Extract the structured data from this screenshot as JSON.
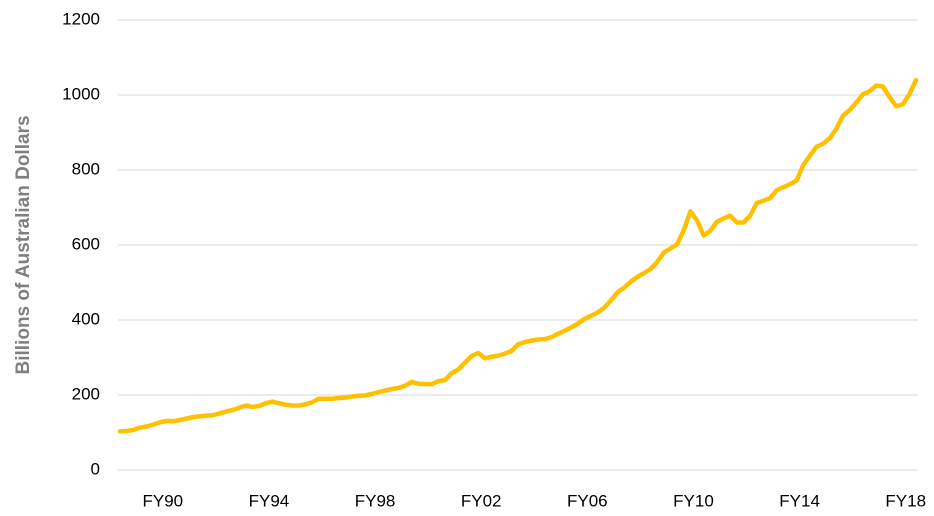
{
  "chart_data": {
    "type": "line",
    "y_label": "Billions of Australian Dollars",
    "categories": [
      null,
      null,
      null,
      null,
      null,
      null,
      "FY90",
      null,
      null,
      null,
      null,
      null,
      null,
      null,
      null,
      null,
      null,
      null,
      null,
      null,
      null,
      null,
      "FY94",
      null,
      null,
      null,
      null,
      null,
      null,
      null,
      null,
      null,
      null,
      null,
      null,
      null,
      null,
      null,
      "FY98",
      null,
      null,
      null,
      null,
      null,
      null,
      null,
      null,
      null,
      null,
      null,
      null,
      null,
      null,
      null,
      "FY02",
      null,
      null,
      null,
      null,
      null,
      null,
      null,
      null,
      null,
      null,
      null,
      null,
      null,
      null,
      null,
      "FY06",
      null,
      null,
      null,
      null,
      null,
      null,
      null,
      null,
      null,
      null,
      null,
      null,
      null,
      null,
      null,
      "FY10",
      null,
      null,
      null,
      null,
      null,
      null,
      null,
      null,
      null,
      null,
      null,
      null,
      null,
      null,
      null,
      "FY14",
      null,
      null,
      null,
      null,
      null,
      null,
      null,
      null,
      null,
      null,
      null,
      null,
      null,
      null,
      null,
      "FY18",
      null,
      null
    ],
    "values": [
      103,
      104,
      107,
      113,
      116,
      121,
      127,
      131,
      130,
      133,
      137,
      141,
      143,
      145,
      146,
      151,
      156,
      160,
      166,
      172,
      168,
      171,
      178,
      182,
      178,
      174,
      172,
      172,
      175,
      181,
      190,
      190,
      190,
      192,
      193,
      196,
      198,
      199,
      203,
      208,
      212,
      216,
      219,
      225,
      235,
      230,
      229,
      229,
      237,
      240,
      258,
      268,
      286,
      304,
      312,
      298,
      302,
      305,
      310,
      317,
      335,
      341,
      345,
      348,
      349,
      354,
      363,
      371,
      380,
      390,
      403,
      411,
      420,
      433,
      452,
      474,
      486,
      502,
      515,
      525,
      536,
      555,
      580,
      591,
      602,
      640,
      690,
      665,
      625,
      638,
      662,
      671,
      678,
      660,
      660,
      678,
      712,
      718,
      725,
      746,
      754,
      762,
      772,
      813,
      838,
      862,
      870,
      885,
      910,
      945,
      960,
      980,
      1002,
      1010,
      1025,
      1023,
      995,
      970,
      975,
      1002,
      1040
    ],
    "color": "#ffc000",
    "ylim": [
      0,
      1200
    ],
    "yticks": [
      0,
      200,
      400,
      600,
      800,
      1000,
      1200
    ],
    "grid": true
  }
}
